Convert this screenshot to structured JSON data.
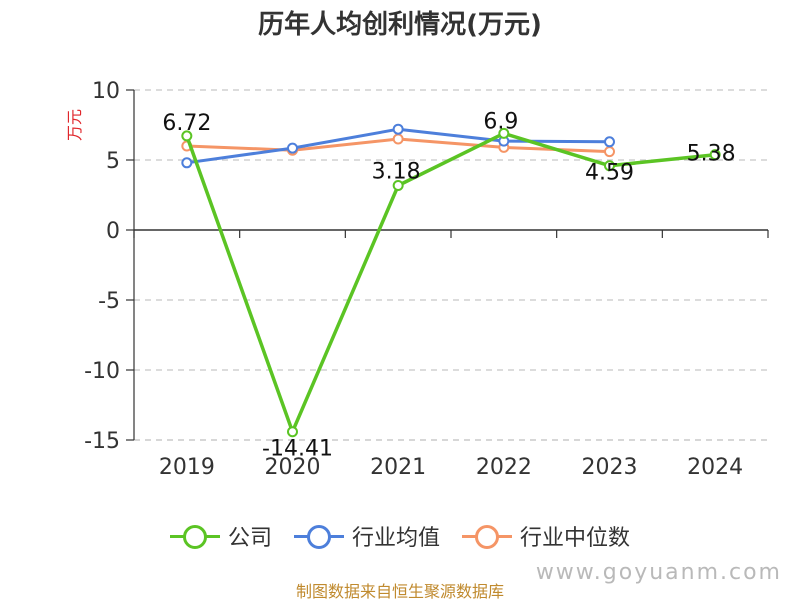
{
  "chart_data": {
    "type": "line",
    "title": "历年人均创利情况(万元)",
    "ylabel": "万元",
    "categories": [
      "2019",
      "2020",
      "2021",
      "2022",
      "2023",
      "2024"
    ],
    "ylim": [
      -15,
      10
    ],
    "yticks": [
      10,
      5,
      0,
      -5,
      -10,
      -15
    ],
    "grid": true,
    "legend_position": "bottom",
    "series": [
      {
        "name": "公司",
        "color": "#5bc424",
        "values": [
          6.72,
          -14.41,
          3.18,
          6.9,
          4.59,
          5.38
        ],
        "labels": [
          "6.72",
          "-14.41",
          "3.18",
          "6.9",
          "4.59",
          "5.38"
        ]
      },
      {
        "name": "行业均值",
        "color": "#4d7fdb",
        "values": [
          4.8,
          5.85,
          7.2,
          6.35,
          6.3,
          null
        ]
      },
      {
        "name": "行业中位数",
        "color": "#f59566",
        "values": [
          6.0,
          5.7,
          6.5,
          5.9,
          5.6,
          null
        ]
      }
    ]
  },
  "source_text": "制图数据来自恒生聚源数据库",
  "watermark_text": "www.goyuanm.com"
}
